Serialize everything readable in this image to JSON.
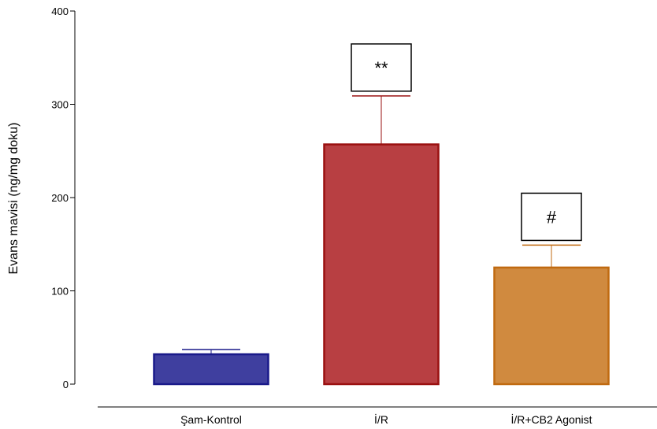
{
  "chart_data": {
    "type": "bar",
    "title": "",
    "xlabel": "",
    "ylabel": "Evans mavisi (ng/mg doku)",
    "ylim": [
      0,
      400
    ],
    "yticks": [
      0,
      100,
      200,
      300,
      400
    ],
    "grid": false,
    "categories": [
      "Şam-Kontrol",
      "İ/R",
      "İ/R+CB2 Agonist"
    ],
    "values": [
      32,
      257,
      125
    ],
    "errors": [
      5,
      52,
      24
    ],
    "annotations": [
      "",
      "**",
      "#"
    ],
    "fill_colors": [
      "#3f3f9f",
      "#b83f42",
      "#d08a3f"
    ],
    "edge_colors": [
      "#1a1a8a",
      "#9a1010",
      "#c06a10"
    ]
  }
}
